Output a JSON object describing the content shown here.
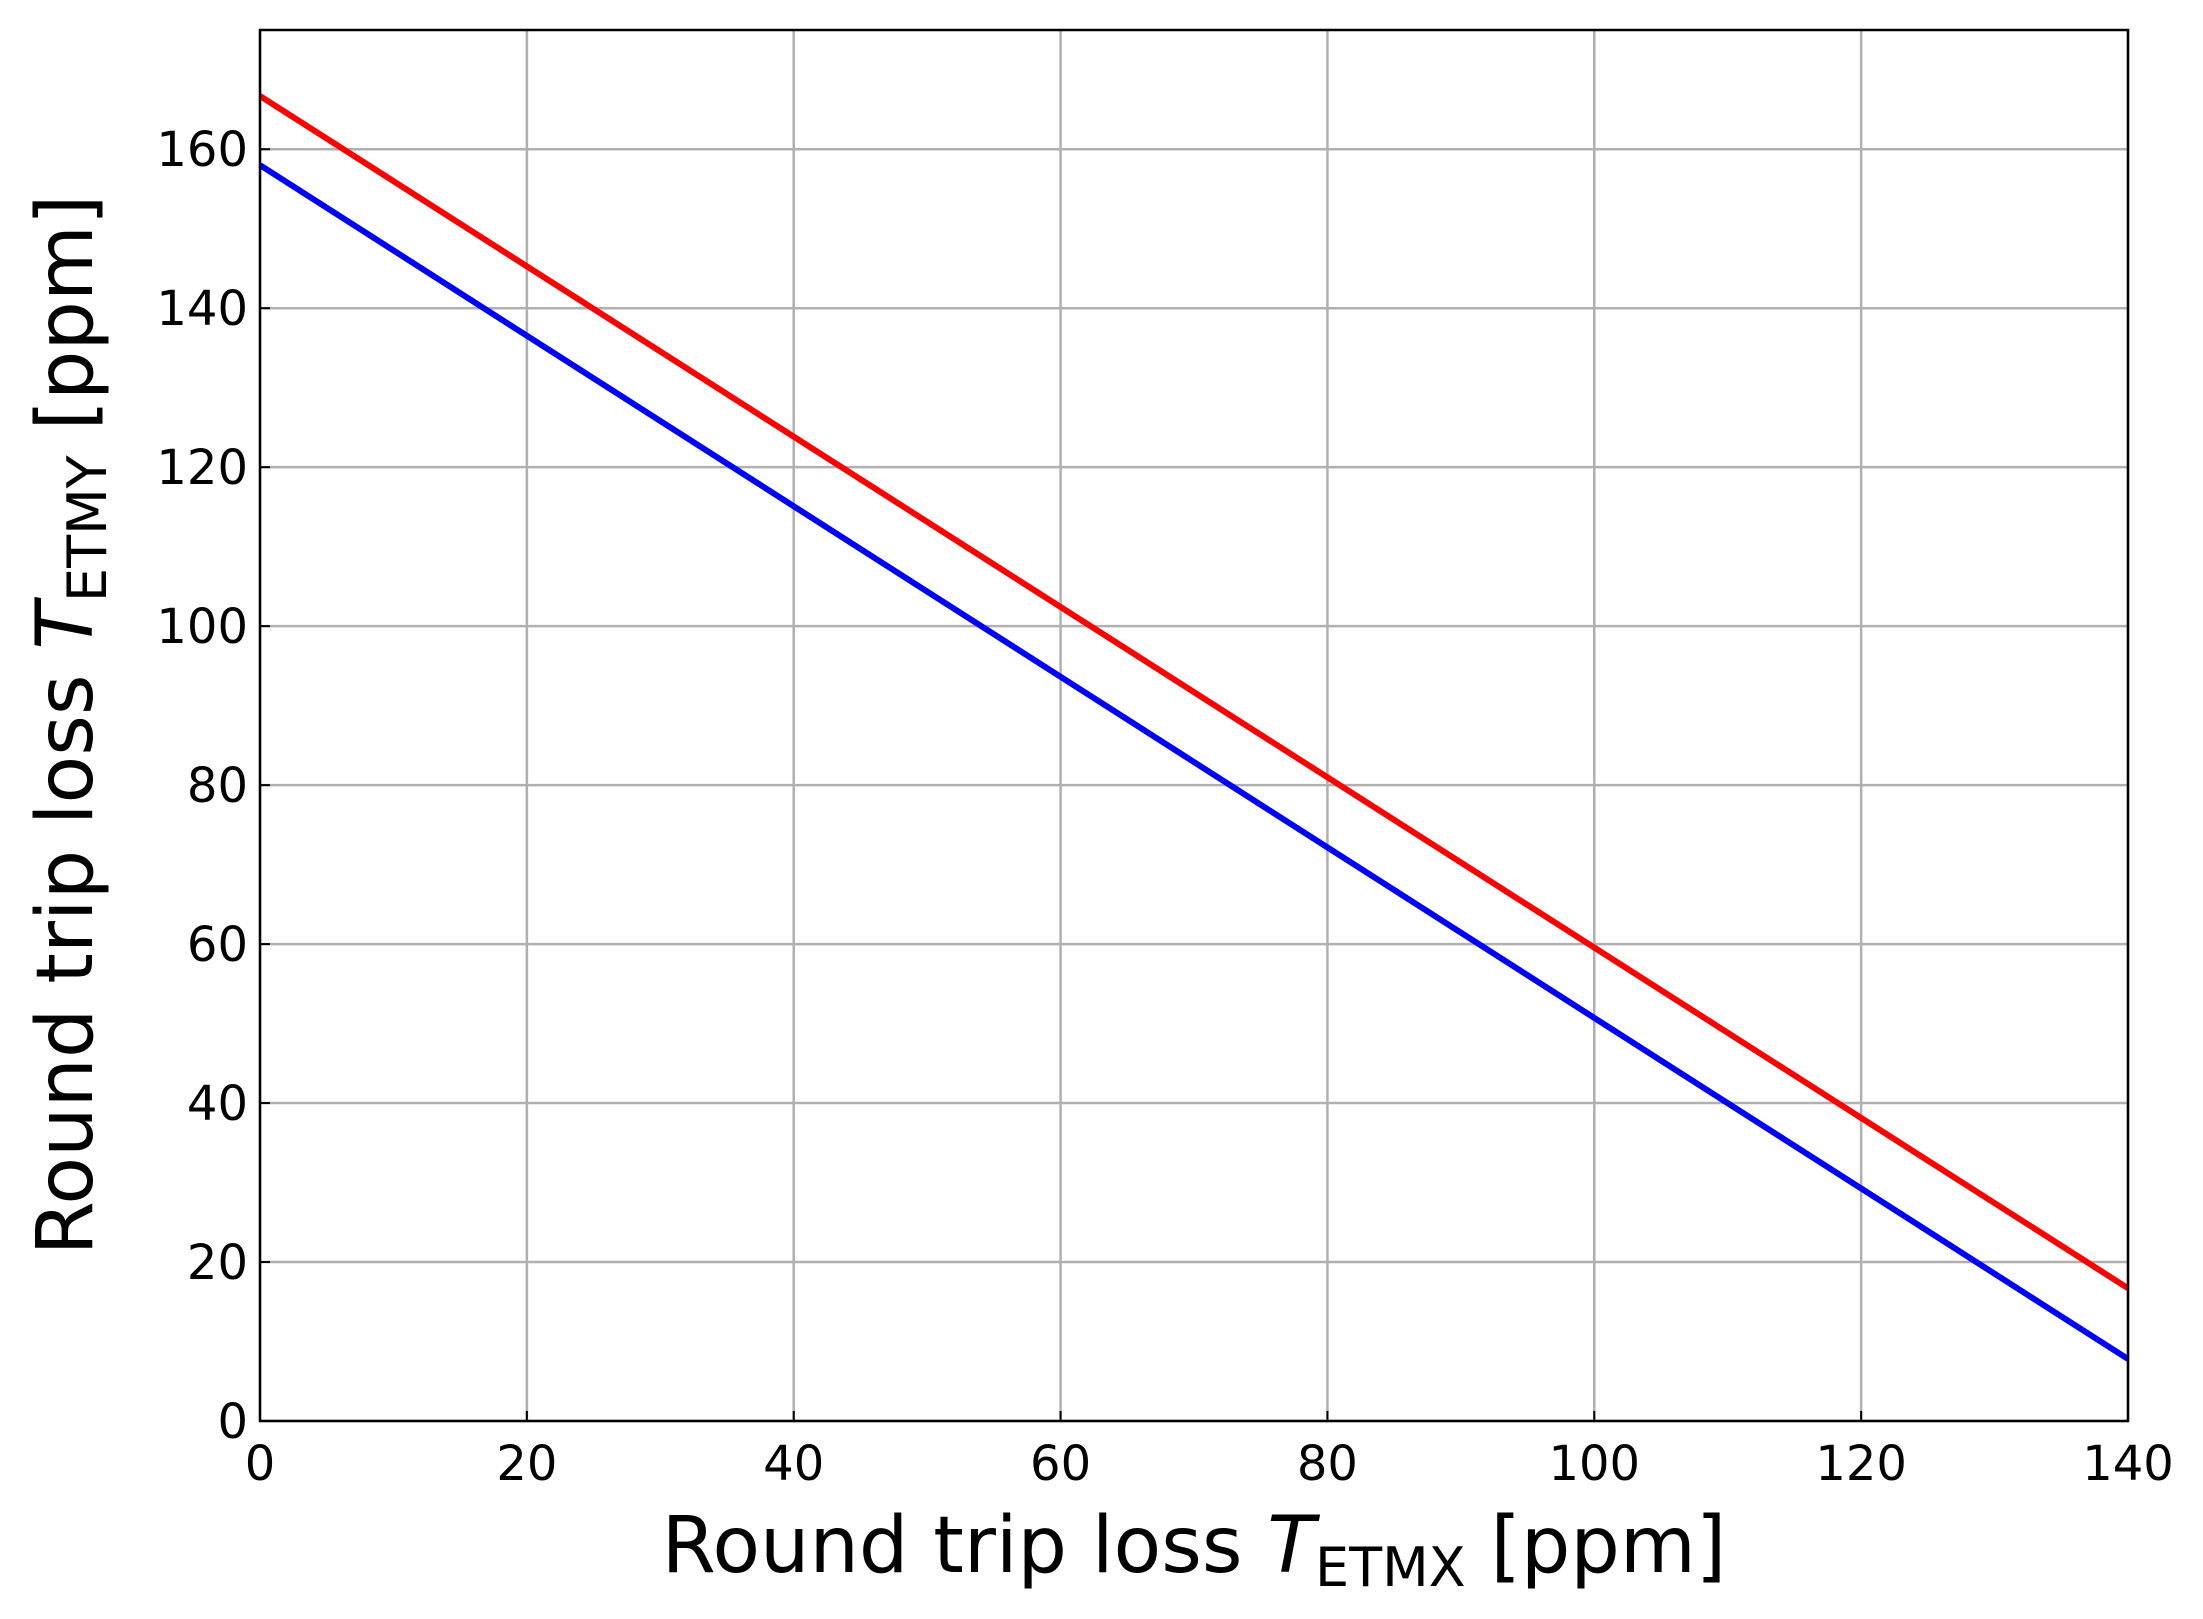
{
  "chart_data": {
    "type": "line",
    "x_label": {
      "prefix": "Round trip loss ",
      "symbol": "T",
      "subscript": "ETMX",
      "suffix": " [ppm]"
    },
    "y_label": {
      "prefix": "Round trip loss ",
      "symbol": "T",
      "subscript": "ETMY",
      "suffix": " [ppm]"
    },
    "x": [
      0,
      140
    ],
    "series": [
      {
        "color": "#ff0000",
        "values": [
          166.7,
          16.7
        ]
      },
      {
        "color": "#0000ff",
        "values": [
          158,
          7.8
        ]
      }
    ],
    "xlim": [
      0,
      140
    ],
    "xticks": [
      0,
      20,
      40,
      60,
      80,
      100,
      120,
      140
    ],
    "ylim": [
      0,
      175
    ],
    "yticks": [
      0,
      20,
      40,
      60,
      80,
      100,
      120,
      140,
      160
    ],
    "grid": true
  }
}
